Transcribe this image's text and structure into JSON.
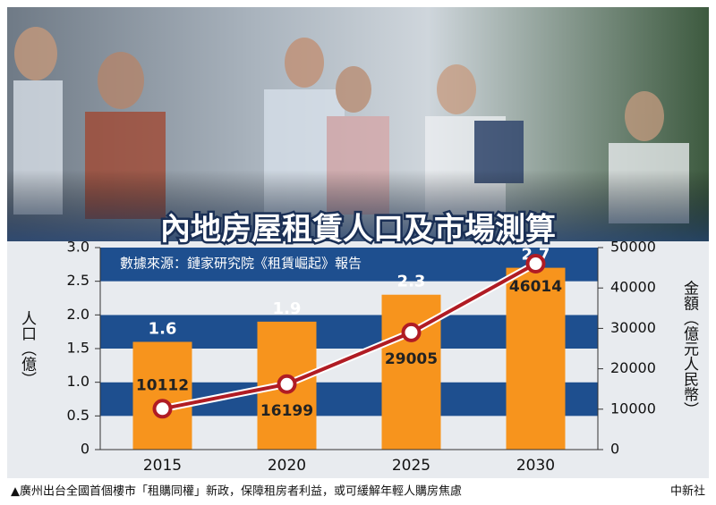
{
  "chart_data": {
    "type": "bar",
    "title": "內地房屋租賃人口及市場測算",
    "subtitle": "數據來源：鏈家研究院《租賃崛起》報告",
    "ylabel": "人口（億）",
    "y2label": "金額（億元人民幣）",
    "categories": [
      "2015",
      "2020",
      "2025",
      "2030"
    ],
    "series": [
      {
        "type": "bar",
        "axis": "y",
        "color": "#f7941d",
        "values": [
          1.6,
          1.9,
          2.3,
          2.7
        ]
      },
      {
        "type": "line",
        "axis": "y2",
        "color": "#b01c24",
        "values": [
          10112,
          16199,
          29005,
          46014
        ]
      }
    ],
    "ylim": [
      0,
      3.0
    ],
    "yticks": [
      0,
      0.5,
      {
        "value": 1,
        "label": "1.0"
      },
      1.5,
      {
        "value": 2,
        "label": "2.0"
      },
      2.5,
      {
        "value": 3,
        "label": "3.0"
      }
    ],
    "y2lim": [
      0,
      50000
    ],
    "y2ticks": [
      0,
      10000,
      20000,
      30000,
      40000,
      50000
    ],
    "caption": "▲廣州出台全國首個樓市「租購同權」新政，保障租房者利益，或可緩解年輕人購房焦慮",
    "credit": "中新社"
  }
}
